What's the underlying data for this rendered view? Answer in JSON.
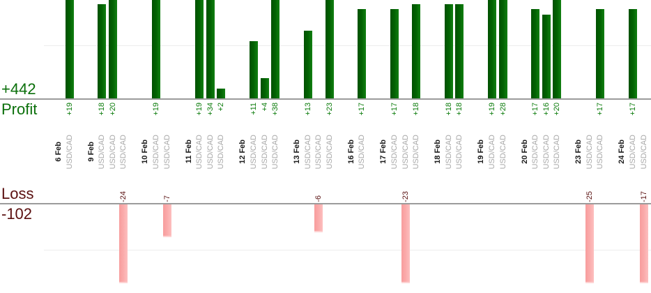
{
  "chart_data": {
    "type": "bar",
    "symbol": "USD/CAD",
    "series_positive": {
      "name": "Profit",
      "total": 442,
      "total_label": "+442"
    },
    "series_negative": {
      "name": "Loss",
      "total": -102,
      "total_label": "-102"
    },
    "grid_step_units": 10,
    "groups": [
      {
        "date": "6 Feb",
        "trades": [
          {
            "symbol": "USD/CAD",
            "value": 19,
            "label": "+19"
          }
        ]
      },
      {
        "date": "9 Feb",
        "trades": [
          {
            "symbol": "USD/CAD",
            "value": 18,
            "label": "+18"
          },
          {
            "symbol": "USD/CAD",
            "value": 20,
            "label": "+20"
          },
          {
            "symbol": "USD/CAD",
            "value": -24,
            "label": "-24"
          }
        ]
      },
      {
        "date": "10 Feb",
        "trades": [
          {
            "symbol": "USD/CAD",
            "value": 19,
            "label": "+19"
          },
          {
            "symbol": "USD/CAD",
            "value": -7,
            "label": "-7"
          }
        ]
      },
      {
        "date": "11 Feb",
        "trades": [
          {
            "symbol": "USD/CAD",
            "value": 19,
            "label": "+19"
          },
          {
            "symbol": "USD/CAD",
            "value": 34,
            "label": "+34"
          },
          {
            "symbol": "USD/CAD",
            "value": 2,
            "label": "+2"
          }
        ]
      },
      {
        "date": "12 Feb",
        "trades": [
          {
            "symbol": "USD/CAD",
            "value": 11,
            "label": "+11"
          },
          {
            "symbol": "USD/CAD",
            "value": 4,
            "label": "+4"
          },
          {
            "symbol": "USD/CAD",
            "value": 38,
            "label": "+38"
          }
        ]
      },
      {
        "date": "13 Feb",
        "trades": [
          {
            "symbol": "USD/CAD",
            "value": 13,
            "label": "+13"
          },
          {
            "symbol": "USD/CAD",
            "value": -6,
            "label": "-6"
          },
          {
            "symbol": "USD/CAD",
            "value": 23,
            "label": "+23"
          }
        ]
      },
      {
        "date": "16 Feb",
        "trades": [
          {
            "symbol": "USD/CAD",
            "value": 17,
            "label": "+17"
          }
        ]
      },
      {
        "date": "17 Feb",
        "trades": [
          {
            "symbol": "USD/CAD",
            "value": 17,
            "label": "+17"
          },
          {
            "symbol": "USD/CAD",
            "value": -23,
            "label": "-23"
          },
          {
            "symbol": "USD/CAD",
            "value": 18,
            "label": "+18"
          }
        ]
      },
      {
        "date": "18 Feb",
        "trades": [
          {
            "symbol": "USD/CAD",
            "value": 18,
            "label": "+18"
          },
          {
            "symbol": "USD/CAD",
            "value": 18,
            "label": "+18"
          }
        ]
      },
      {
        "date": "19 Feb",
        "trades": [
          {
            "symbol": "USD/CAD",
            "value": 19,
            "label": "+19"
          },
          {
            "symbol": "USD/CAD",
            "value": 28,
            "label": "+28"
          }
        ]
      },
      {
        "date": "20 Feb",
        "trades": [
          {
            "symbol": "USD/CAD",
            "value": 17,
            "label": "+17"
          },
          {
            "symbol": "USD/CAD",
            "value": 16,
            "label": "+16"
          },
          {
            "symbol": "USD/CAD",
            "value": 20,
            "label": "+20"
          }
        ]
      },
      {
        "date": "23 Feb",
        "trades": [
          {
            "symbol": "USD/CAD",
            "value": -25,
            "label": "-25"
          },
          {
            "symbol": "USD/CAD",
            "value": 17,
            "label": "+17"
          }
        ]
      },
      {
        "date": "24 Feb",
        "trades": [
          {
            "symbol": "USD/CAD",
            "value": 17,
            "label": "+17"
          },
          {
            "symbol": "USD/CAD",
            "value": -17,
            "label": "-17"
          }
        ]
      }
    ],
    "colors": {
      "profit_bar": "#026202",
      "profit_text": "#0a6f0a",
      "loss_bar": "#faa9a9",
      "loss_text": "#5a0f0f",
      "symbol_text": "#a8a8a8",
      "date_text": "#1b1b1b"
    }
  }
}
